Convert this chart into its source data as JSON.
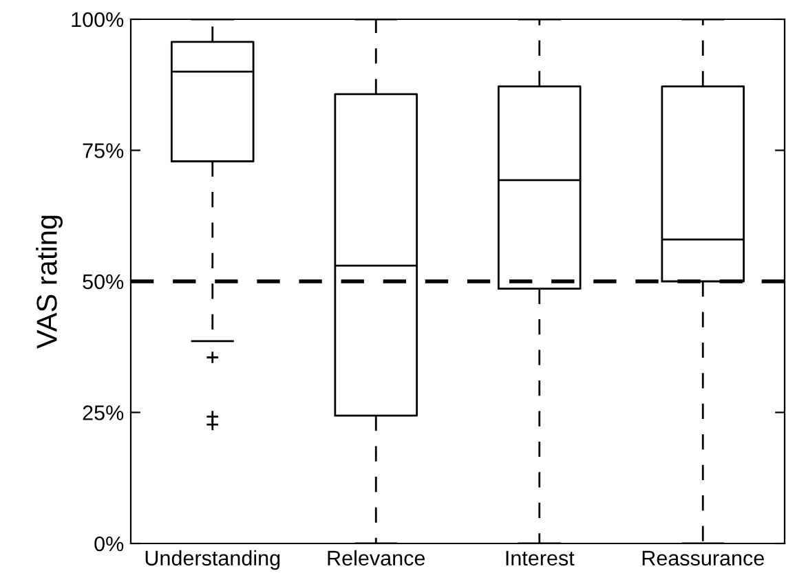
{
  "chart_data": {
    "type": "box",
    "ylabel": "VAS rating",
    "categories": [
      "Understanding",
      "Relevance",
      "Interest",
      "Reassurance"
    ],
    "boxes": [
      {
        "low": 38.6,
        "q1": 72.9,
        "median": 90.0,
        "q3": 95.7,
        "high": 100,
        "outliers": [
          35.5,
          24.2,
          22.7
        ]
      },
      {
        "low": 0,
        "q1": 24.4,
        "median": 53.0,
        "q3": 85.7,
        "high": 100
      },
      {
        "low": 0,
        "q1": 48.6,
        "median": 69.3,
        "q3": 87.2,
        "high": 100
      },
      {
        "low": 0,
        "q1": 50.0,
        "median": 58.0,
        "q3": 87.2,
        "high": 100
      }
    ],
    "ylim": [
      0,
      100
    ],
    "yticks": [
      {
        "value": 0,
        "label": "0%"
      },
      {
        "value": 25,
        "label": "25%"
      },
      {
        "value": 50,
        "label": "50%"
      },
      {
        "value": 75,
        "label": "75%"
      },
      {
        "value": 100,
        "label": "100%"
      }
    ],
    "ref_lines": [
      {
        "axis": "y",
        "value": 50,
        "color": "#000000",
        "line_style": "dashed"
      }
    ],
    "grid": false,
    "legend": false
  }
}
